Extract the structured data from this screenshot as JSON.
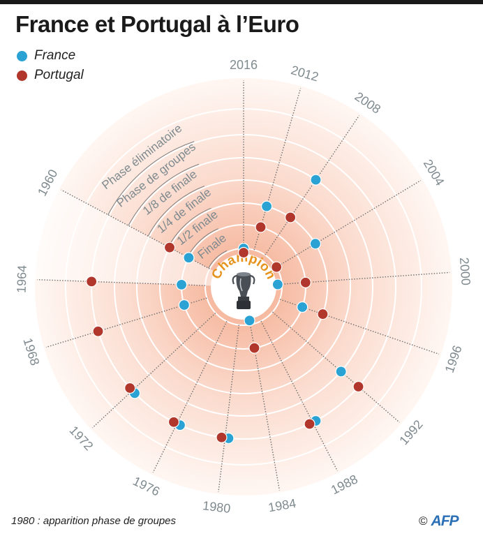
{
  "title": "France et Portugal à l’Euro",
  "colors": {
    "france": "#2aa3d4",
    "portugal": "#b1372c",
    "label": "#7f8a8f",
    "champion": "#e6931e",
    "afp": "#2b6fb6"
  },
  "legend": {
    "france": "France",
    "portugal": "Portugal"
  },
  "footnote": "1980 : apparition phase de groupes",
  "credit": {
    "copyright": "©",
    "agency": "AFP"
  },
  "chart_data": {
    "type": "radial-scatter",
    "title": "France et Portugal à l’Euro",
    "center_label": "Champion",
    "center_icon": "trophy-icon",
    "rounds": [
      "Champion",
      "Finale",
      "1/2 finale",
      "1/4 de finale",
      "1/8 de finale",
      "Phase de groupes",
      "Phase éliminatoire"
    ],
    "years": [
      2016,
      2012,
      2008,
      2004,
      2000,
      1996,
      1992,
      1988,
      1984,
      1980,
      1976,
      1972,
      1968,
      1964,
      1960
    ],
    "series": [
      {
        "name": "France",
        "values": {
          "2016": "Finale",
          "2012": "1/4 de finale",
          "2008": "Phase de groupes",
          "2004": "1/4 de finale",
          "2000": "Champion",
          "1996": "1/2 finale",
          "1992": "Phase de groupes",
          "1988": "Phase éliminatoire",
          "1984": "Champion",
          "1980": "Phase éliminatoire",
          "1976": "Phase éliminatoire",
          "1972": "Phase éliminatoire",
          "1968": "1/2 finale",
          "1964": "1/2 finale",
          "1960": "1/2 finale"
        }
      },
      {
        "name": "Portugal",
        "values": {
          "2016": "Champion",
          "2012": "1/2 finale",
          "2008": "1/4 de finale",
          "2004": "Finale",
          "2000": "1/2 finale",
          "1996": "1/4 de finale",
          "1992": "Phase éliminatoire",
          "1988": "Phase éliminatoire",
          "1984": "1/2 finale",
          "1980": "Phase éliminatoire",
          "1976": "Phase éliminatoire",
          "1972": "Phase éliminatoire",
          "1968": "Phase éliminatoire",
          "1964": "Phase éliminatoire",
          "1960": "1/4 de finale"
        }
      }
    ]
  }
}
